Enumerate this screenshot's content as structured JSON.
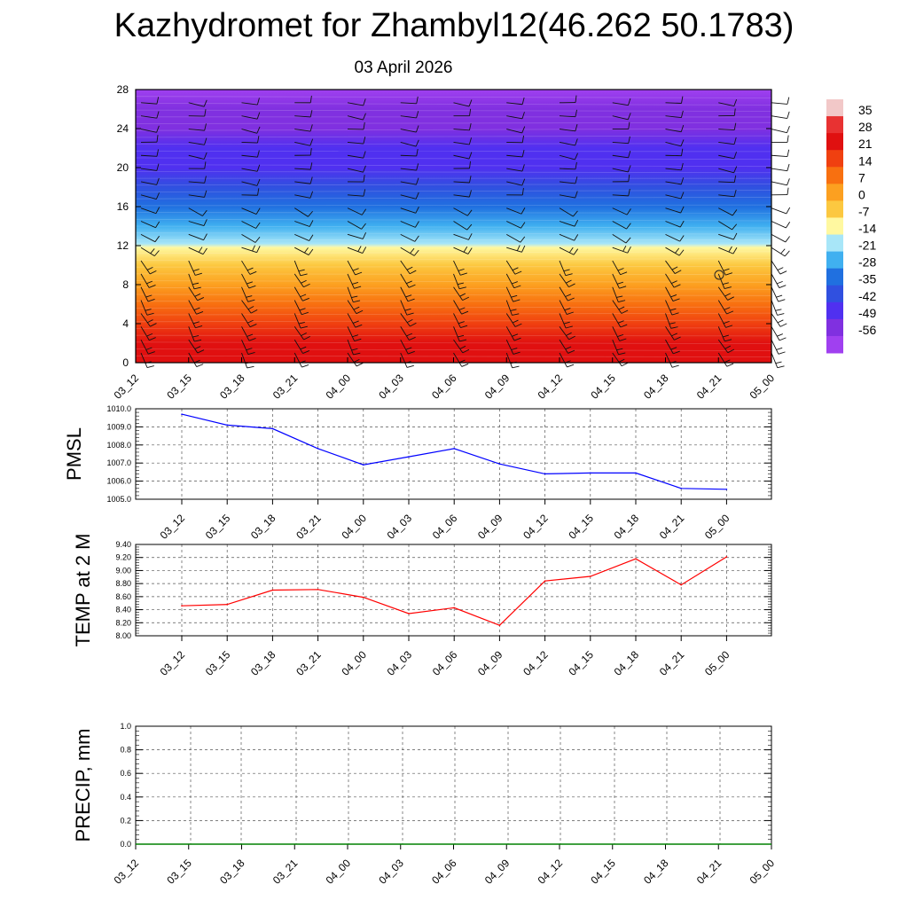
{
  "header": {
    "title": "Kazhydromet for Zhambyl12(46.262 50.1783)",
    "date": "03 April 2026"
  },
  "chart_data": [
    {
      "type": "heatmap",
      "description_axis": "time-height cross section",
      "x_ticks": [
        "03_12",
        "03_15",
        "03_18",
        "03_21",
        "04_00",
        "04_03",
        "04_06",
        "04_09",
        "04_12",
        "04_15",
        "04_18",
        "04_21",
        "05_00"
      ],
      "y_ticks": [
        "0",
        "4",
        "8",
        "12",
        "16",
        "20",
        "24",
        "28"
      ],
      "ylim": [
        0,
        28
      ],
      "colorbar_labels": [
        "35",
        "28",
        "21",
        "14",
        "7",
        "0",
        "-7",
        "-14",
        "-21",
        "-28",
        "-35",
        "-42",
        "-49",
        "-56"
      ],
      "colorbar_colors": [
        "#f2c8c8",
        "#e83232",
        "#e01010",
        "#f04010",
        "#f87010",
        "#fca020",
        "#fcc840",
        "#fff8a0",
        "#a8e6f8",
        "#40b0f0",
        "#2070e0",
        "#3050e0",
        "#5030f0",
        "#8030e0",
        "#a040f0"
      ],
      "temperature_profile": [
        {
          "y": 0,
          "t": 28
        },
        {
          "y": 2,
          "t": 24
        },
        {
          "y": 4,
          "t": 18
        },
        {
          "y": 6,
          "t": 12
        },
        {
          "y": 8,
          "t": 6
        },
        {
          "y": 10,
          "t": 0
        },
        {
          "y": 11.8,
          "t": -7
        },
        {
          "y": 12.2,
          "t": -14
        },
        {
          "y": 14,
          "t": -24
        },
        {
          "y": 16,
          "t": -32
        },
        {
          "y": 18,
          "t": -40
        },
        {
          "y": 20,
          "t": -46
        },
        {
          "y": 22,
          "t": -48
        },
        {
          "y": 24,
          "t": -50
        },
        {
          "y": 26,
          "t": -55
        },
        {
          "y": 28,
          "t": -60
        }
      ]
    },
    {
      "type": "line",
      "ylabel": "PMSL",
      "x": [
        "03_12",
        "03_15",
        "03_18",
        "03_21",
        "04_00",
        "04_03",
        "04_06",
        "04_09",
        "04_12",
        "04_15",
        "04_18",
        "04_21",
        "05_00"
      ],
      "y_ticks": [
        "1005.0",
        "1006.0",
        "1007.0",
        "1008.0",
        "1009.0",
        "1010.0"
      ],
      "ylim": [
        1005.0,
        1010.0
      ],
      "series": [
        {
          "values": [
            1009.7,
            1009.1,
            1008.9,
            1007.8,
            1006.9,
            1007.35,
            1007.8,
            1006.95,
            1006.4,
            1006.45,
            1006.45,
            1005.6,
            1005.55
          ],
          "color": "#0000ff"
        }
      ]
    },
    {
      "type": "line",
      "ylabel": "TEMP at 2 M",
      "x": [
        "03_12",
        "03_15",
        "03_18",
        "03_21",
        "04_00",
        "04_03",
        "04_06",
        "04_09",
        "04_12",
        "04_15",
        "04_18",
        "04_21",
        "05_00"
      ],
      "y_ticks": [
        "8.00",
        "8.20",
        "8.40",
        "8.60",
        "8.80",
        "9.00",
        "9.20",
        "9.40"
      ],
      "ylim": [
        8.0,
        9.4
      ],
      "series": [
        {
          "values": [
            8.46,
            8.48,
            8.7,
            8.71,
            8.59,
            8.34,
            8.43,
            8.16,
            8.84,
            8.91,
            9.18,
            8.78,
            9.21
          ],
          "color": "#ff0000"
        }
      ]
    },
    {
      "type": "line",
      "ylabel": "PRECIP, mm",
      "x": [
        "03_12",
        "03_15",
        "03_18",
        "03_21",
        "04_00",
        "04_03",
        "04_06",
        "04_09",
        "04_12",
        "04_15",
        "04_18",
        "04_21",
        "05_00"
      ],
      "y_ticks": [
        "0.0",
        "0.2",
        "0.4",
        "0.6",
        "0.8",
        "1.0"
      ],
      "ylim": [
        0.0,
        1.0
      ],
      "series": [
        {
          "values": [
            0,
            0,
            0,
            0,
            0,
            0,
            0,
            0,
            0,
            0,
            0,
            0,
            0
          ],
          "color": "#008000"
        }
      ]
    }
  ]
}
